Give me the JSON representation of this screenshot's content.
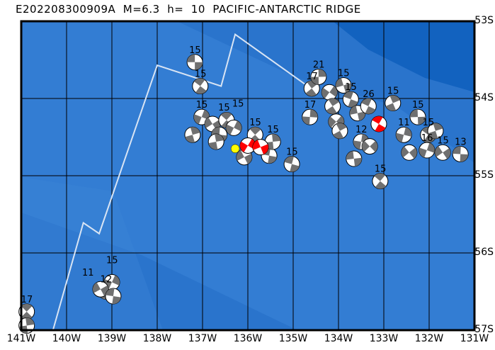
{
  "title": "E202208300909A  M=6.3  h=  10  PACIFIC-ANTARCTIC RIDGE",
  "map": {
    "lon_range": [
      -141,
      -131
    ],
    "lat_range": [
      -57,
      -53
    ],
    "lat_labels": [
      "53S",
      "54S",
      "55S",
      "56S",
      "57S"
    ],
    "lon_labels": [
      "141W",
      "140W",
      "139W",
      "138W",
      "137W",
      "136W",
      "135W",
      "134W",
      "133W",
      "132W",
      "131W"
    ],
    "colors": {
      "ocean": "#2a74cc",
      "shallow": "#3b85d8",
      "deep": "#1262bf",
      "plate_boundary": "#d8e4f4",
      "beachball_dark": "#707070",
      "main_event": "#ff0000",
      "epicenter": "#ffff00"
    },
    "plate_boundary": [
      [
        -140.3,
        -57.0
      ],
      [
        -139.63,
        -55.61
      ],
      [
        -139.28,
        -55.75
      ],
      [
        -138.0,
        -53.57
      ],
      [
        -136.59,
        -53.84
      ],
      [
        -136.28,
        -53.17
      ],
      [
        -134.75,
        -53.81
      ]
    ],
    "epicenter": {
      "lon": -136.28,
      "lat": -54.65
    },
    "events": [
      {
        "lon": -137.17,
        "lat": -53.53,
        "label": "15"
      },
      {
        "lon": -137.05,
        "lat": -53.84,
        "label": "15"
      },
      {
        "lon": -137.22,
        "lat": -54.47,
        "label": ""
      },
      {
        "lon": -137.02,
        "lat": -54.24,
        "label": "15"
      },
      {
        "lon": -136.78,
        "lat": -54.33,
        "label": "15"
      },
      {
        "lon": -136.63,
        "lat": -54.47,
        "label": ""
      },
      {
        "lon": -136.47,
        "lat": -54.28,
        "label": "15"
      },
      {
        "lon": -136.7,
        "lat": -54.56,
        "label": ""
      },
      {
        "lon": -136.31,
        "lat": -54.38,
        "label": ""
      },
      {
        "lon": -136.08,
        "lat": -54.76,
        "label": ""
      },
      {
        "lon": -135.53,
        "lat": -54.74,
        "label": ""
      },
      {
        "lon": -135.84,
        "lat": -54.47,
        "label": "15"
      },
      {
        "lon": -135.45,
        "lat": -54.56,
        "label": "15"
      },
      {
        "lon": -136.0,
        "lat": -54.61,
        "label": "",
        "red": true
      },
      {
        "lon": -135.72,
        "lat": -54.63,
        "label": "",
        "red": true
      },
      {
        "lon": -135.03,
        "lat": -54.85,
        "label": "15"
      },
      {
        "lon": -134.59,
        "lat": -53.87,
        "label": "17"
      },
      {
        "lon": -134.44,
        "lat": -53.72,
        "label": "21"
      },
      {
        "lon": -134.2,
        "lat": -53.92,
        "label": ""
      },
      {
        "lon": -133.89,
        "lat": -53.83,
        "label": "15"
      },
      {
        "lon": -133.73,
        "lat": -54.01,
        "label": "15"
      },
      {
        "lon": -134.13,
        "lat": -54.1,
        "label": ""
      },
      {
        "lon": -134.63,
        "lat": -54.24,
        "label": "17"
      },
      {
        "lon": -134.05,
        "lat": -54.3,
        "label": ""
      },
      {
        "lon": -133.58,
        "lat": -54.19,
        "label": ""
      },
      {
        "lon": -133.34,
        "lat": -54.1,
        "label": "26"
      },
      {
        "lon": -133.97,
        "lat": -54.42,
        "label": ""
      },
      {
        "lon": -133.5,
        "lat": -54.56,
        "label": "12"
      },
      {
        "lon": -133.31,
        "lat": -54.62,
        "label": ""
      },
      {
        "lon": -133.66,
        "lat": -54.78,
        "label": ""
      },
      {
        "lon": -133.11,
        "lat": -54.33,
        "label": "",
        "red": true
      },
      {
        "lon": -132.8,
        "lat": -54.06,
        "label": "15"
      },
      {
        "lon": -132.56,
        "lat": -54.47,
        "label": "11"
      },
      {
        "lon": -132.44,
        "lat": -54.7,
        "label": ""
      },
      {
        "lon": -132.25,
        "lat": -54.24,
        "label": "15"
      },
      {
        "lon": -132.02,
        "lat": -54.47,
        "label": "15"
      },
      {
        "lon": -131.86,
        "lat": -54.42,
        "label": ""
      },
      {
        "lon": -132.05,
        "lat": -54.67,
        "label": "16"
      },
      {
        "lon": -131.7,
        "lat": -54.7,
        "label": "15"
      },
      {
        "lon": -131.31,
        "lat": -54.72,
        "label": "13"
      },
      {
        "lon": -133.08,
        "lat": -55.07,
        "label": "15"
      },
      {
        "lon": -139.13,
        "lat": -56.5,
        "label": "12"
      },
      {
        "lon": -139.0,
        "lat": -56.38,
        "label": "15"
      },
      {
        "lon": -139.25,
        "lat": -56.47,
        "label": "11"
      },
      {
        "lon": -138.97,
        "lat": -56.56,
        "label": ""
      },
      {
        "lon": -140.88,
        "lat": -56.76,
        "label": "17"
      },
      {
        "lon": -140.88,
        "lat": -56.94,
        "label": ""
      }
    ]
  }
}
